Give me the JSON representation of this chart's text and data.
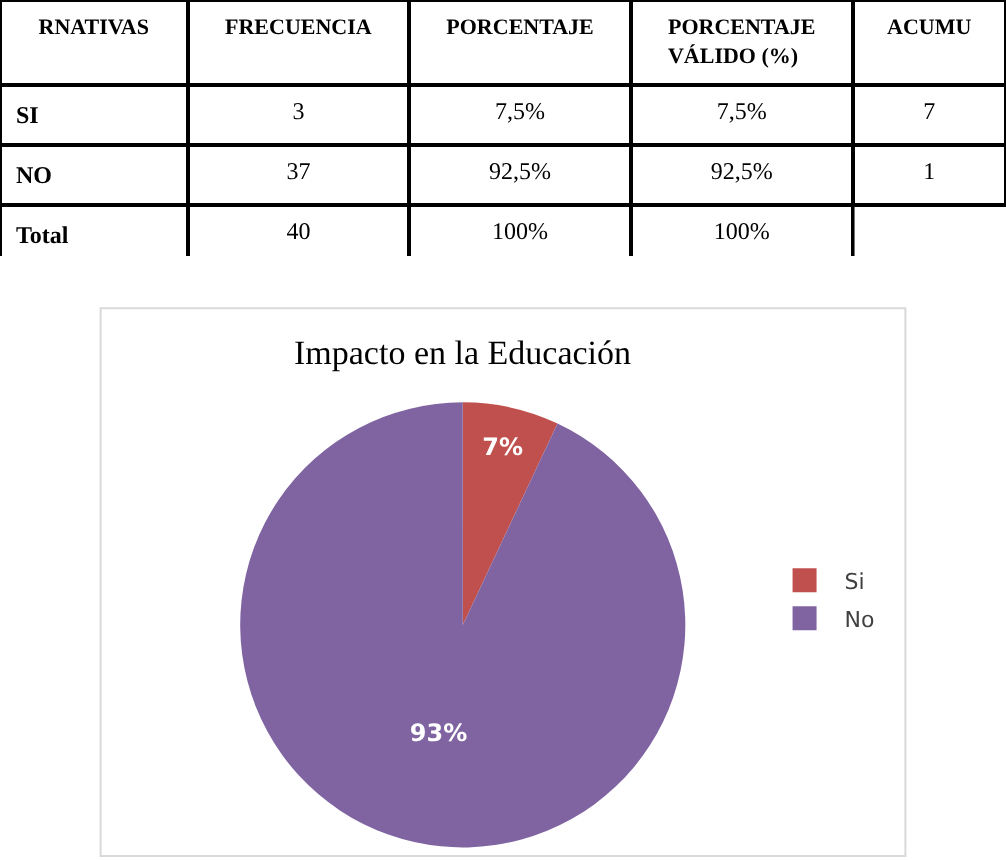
{
  "chart_data": [
    {
      "type": "other",
      "categories": [
        "RNATIVAS",
        "FRECUENCIA",
        "PORCENTAJE",
        "PORCENTAJE VÁLIDO (%)",
        "ACUMU"
      ],
      "y_categories": [
        "SI",
        "NO",
        "Total"
      ],
      "cell_labels": [
        [
          "3",
          "7,5%",
          "7,5%",
          "7"
        ],
        [
          "37",
          "92,5%",
          "92,5%",
          "1"
        ],
        [
          "40",
          "100%",
          "100%",
          null
        ]
      ]
    },
    {
      "type": "pie",
      "title": "Impacto en la Educación",
      "categories": [
        "Si",
        "No"
      ],
      "values": [
        7,
        93
      ],
      "colors": [
        "#c0504d",
        "#8064a2"
      ],
      "value_labels": [
        "7%",
        "93%"
      ],
      "legend": "right"
    }
  ]
}
